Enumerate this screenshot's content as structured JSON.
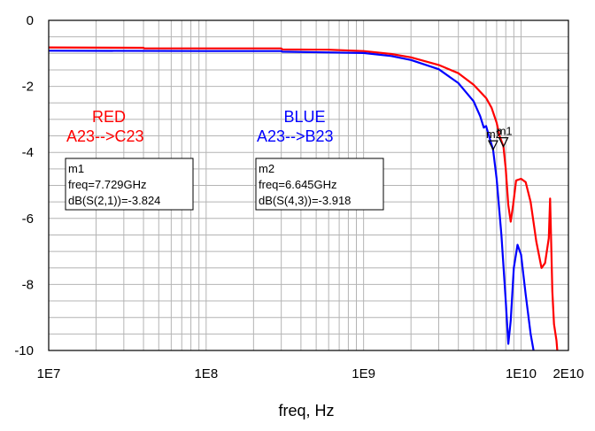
{
  "chart_data": {
    "type": "line",
    "xlabel": "freq, Hz",
    "ylabel": "",
    "x_scale": "log",
    "xlim": [
      10000000.0,
      20000000000.0
    ],
    "ylim": [
      -10,
      0
    ],
    "x_ticks": [
      {
        "value": 10000000.0,
        "label": "1E7"
      },
      {
        "value": 100000000.0,
        "label": "1E8"
      },
      {
        "value": 1000000000.0,
        "label": "1E9"
      },
      {
        "value": 10000000000.0,
        "label": "1E10"
      },
      {
        "value": 20000000000.0,
        "label": "2E10"
      }
    ],
    "y_ticks": [
      {
        "value": 0,
        "label": "0"
      },
      {
        "value": -2,
        "label": "-2"
      },
      {
        "value": -4,
        "label": "-4"
      },
      {
        "value": -6,
        "label": "-6"
      },
      {
        "value": -8,
        "label": "-8"
      },
      {
        "value": -10,
        "label": "-10"
      }
    ],
    "grid": true,
    "series": [
      {
        "color": "#ff0000",
        "points": [
          [
            10000000.0,
            -0.82
          ],
          [
            40000000.0,
            -0.83
          ],
          [
            40500000.0,
            -0.85
          ],
          [
            100000000.0,
            -0.85
          ],
          [
            300000000.0,
            -0.85
          ],
          [
            305000000.0,
            -0.88
          ],
          [
            600000000.0,
            -0.89
          ],
          [
            1000000000.0,
            -0.93
          ],
          [
            1500000000.0,
            -1.02
          ],
          [
            2000000000.0,
            -1.12
          ],
          [
            3000000000.0,
            -1.35
          ],
          [
            4000000000.0,
            -1.6
          ],
          [
            5000000000.0,
            -1.95
          ],
          [
            6000000000.0,
            -2.35
          ],
          [
            6500000000.0,
            -2.65
          ],
          [
            7000000000.0,
            -3.1
          ],
          [
            7300000000.0,
            -3.5
          ],
          [
            7729000000.0,
            -3.824
          ],
          [
            8000000000.0,
            -4.5
          ],
          [
            8300000000.0,
            -5.6
          ],
          [
            8600000000.0,
            -6.1
          ],
          [
            8900000000.0,
            -5.6
          ],
          [
            9300000000.0,
            -4.85
          ],
          [
            10000000000.0,
            -4.8
          ],
          [
            10700000000.0,
            -4.9
          ],
          [
            11500000000.0,
            -5.5
          ],
          [
            12500000000.0,
            -6.7
          ],
          [
            13500000000.0,
            -7.5
          ],
          [
            14200000000.0,
            -7.35
          ],
          [
            15000000000.0,
            -6.6
          ],
          [
            15300000000.0,
            -5.4
          ],
          [
            15500000000.0,
            -6.5
          ],
          [
            15800000000.0,
            -8.2
          ],
          [
            16200000000.0,
            -9.2
          ],
          [
            16800000000.0,
            -9.7
          ],
          [
            17000000000.0,
            -10
          ]
        ]
      },
      {
        "color": "#0000ff",
        "points": [
          [
            10000000.0,
            -0.92
          ],
          [
            100000000.0,
            -0.93
          ],
          [
            300000000.0,
            -0.93
          ],
          [
            305000000.0,
            -0.95
          ],
          [
            1000000000.0,
            -0.99
          ],
          [
            1500000000.0,
            -1.08
          ],
          [
            2000000000.0,
            -1.2
          ],
          [
            3000000000.0,
            -1.48
          ],
          [
            4000000000.0,
            -1.9
          ],
          [
            5000000000.0,
            -2.45
          ],
          [
            5500000000.0,
            -2.9
          ],
          [
            5800000000.0,
            -3.25
          ],
          [
            6000000000.0,
            -3.2
          ],
          [
            6300000000.0,
            -3.55
          ],
          [
            6645000000.0,
            -3.918
          ],
          [
            7000000000.0,
            -4.8
          ],
          [
            7500000000.0,
            -6.5
          ],
          [
            8000000000.0,
            -8.5
          ],
          [
            8300000000.0,
            -9.8
          ],
          [
            8600000000.0,
            -9.1
          ],
          [
            9000000000.0,
            -7.5
          ],
          [
            9500000000.0,
            -6.8
          ],
          [
            10000000000.0,
            -7.1
          ],
          [
            10700000000.0,
            -8.3
          ],
          [
            11500000000.0,
            -9.5
          ],
          [
            12000000000.0,
            -10
          ]
        ]
      }
    ],
    "legend_labels": [
      {
        "title": "RED",
        "text": "A23-->C23",
        "color": "#ff0000"
      },
      {
        "title": "BLUE",
        "text": "A23-->B23",
        "color": "#0000ff"
      }
    ],
    "markers": [
      {
        "name": "m1",
        "freq_hz": 7729000000.0,
        "value_db": -3.824,
        "lines": [
          "m1",
          "freq=7.729GHz",
          "dB(S(2,1))=-3.824"
        ]
      },
      {
        "name": "m2",
        "freq_hz": 6645000000.0,
        "value_db": -3.918,
        "lines": [
          "m2",
          "freq=6.645GHz",
          "dB(S(4,3))=-3.918"
        ]
      }
    ]
  }
}
